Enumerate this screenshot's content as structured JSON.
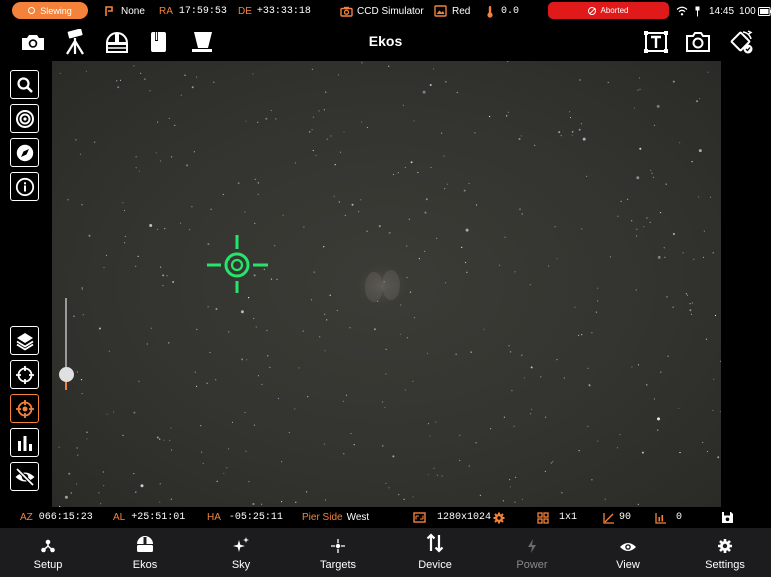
{
  "status": {
    "slew_state": "Slewing",
    "track": "None",
    "ra_label": "RA",
    "ra_value": "17:59:53",
    "de_label": "DE",
    "de_value": "+33:33:18",
    "camera": "CCD Simulator",
    "filter": "Red",
    "temperature": "0.0",
    "capture_state": "Aborted",
    "clock": "14:45",
    "battery": "100"
  },
  "header": {
    "title": "Ekos"
  },
  "toolbar_icons": [
    "camera-icon",
    "mount-icon",
    "dome-icon",
    "focuser-icon",
    "flat-panel-icon"
  ],
  "header_right_icons": [
    "solve-text-icon",
    "capture-preview-icon",
    "auto-rotate-icon"
  ],
  "left_tools": [
    "search-icon",
    "target-icon",
    "compass-icon",
    "info-icon"
  ],
  "view_tools": [
    "layers-icon",
    "crosshair-icon",
    "center-crosshair-icon",
    "histogram-icon",
    "hide-icon"
  ],
  "stretch_level": 0.18,
  "info": {
    "az_label": "AZ",
    "az_value": "066:15:23",
    "al_label": "AL",
    "al_value": "+25:51:01",
    "ha_label": "HA",
    "ha_value": "-05:25:11",
    "pier_label": "Pier Side",
    "pier_value": "West",
    "resolution": "1280x1024",
    "binning": "1x1",
    "gain": "90",
    "offset": "0"
  },
  "nav": [
    {
      "label": "Setup",
      "icon": "setup-icon"
    },
    {
      "label": "Ekos",
      "icon": "ekos-icon"
    },
    {
      "label": "Sky",
      "icon": "sky-icon"
    },
    {
      "label": "Targets",
      "icon": "targets-icon"
    },
    {
      "label": "Device",
      "icon": "device-icon"
    },
    {
      "label": "Power",
      "icon": "power-icon"
    },
    {
      "label": "View",
      "icon": "view-icon"
    },
    {
      "label": "Settings",
      "icon": "settings-icon"
    }
  ],
  "colors": {
    "accent": "#f5823a",
    "aborted": "#e0191b",
    "reticle": "#25e56a",
    "sky": "#33332f"
  }
}
